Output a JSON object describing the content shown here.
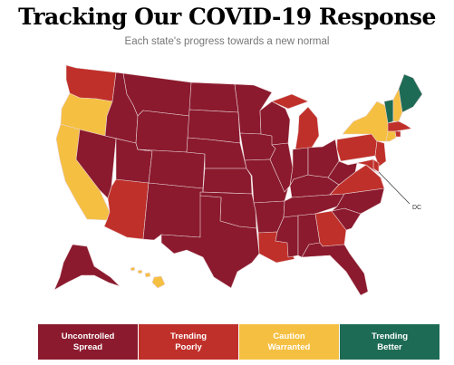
{
  "title": "Tracking Our COVID-19 Response",
  "subtitle": "Each state's progress towards a new normal",
  "dc_label": "DC",
  "colors": {
    "uncontrolled": "#8b1a2e",
    "poorly": "#c0302a",
    "caution": "#f5c042",
    "better": "#1d6b55"
  },
  "legend": [
    {
      "key": "uncontrolled",
      "label": "Uncontrolled\nSpread"
    },
    {
      "key": "poorly",
      "label": "Trending\nPoorly"
    },
    {
      "key": "caution",
      "label": "Caution\nWarranted"
    },
    {
      "key": "better",
      "label": "Trending\nBetter"
    }
  ],
  "states": {
    "WA": "poorly",
    "OR": "caution",
    "CA": "caution",
    "ID": "uncontrolled",
    "NV": "uncontrolled",
    "AZ": "poorly",
    "UT": "uncontrolled",
    "MT": "uncontrolled",
    "WY": "uncontrolled",
    "CO": "uncontrolled",
    "NM": "uncontrolled",
    "ND": "uncontrolled",
    "SD": "uncontrolled",
    "NE": "uncontrolled",
    "KS": "uncontrolled",
    "OK": "uncontrolled",
    "TX": "uncontrolled",
    "MN": "uncontrolled",
    "IA": "uncontrolled",
    "MO": "uncontrolled",
    "AR": "uncontrolled",
    "LA": "poorly",
    "WI": "uncontrolled",
    "IL": "uncontrolled",
    "MI": "poorly",
    "IN": "uncontrolled",
    "OH": "uncontrolled",
    "KY": "uncontrolled",
    "TN": "uncontrolled",
    "MS": "uncontrolled",
    "AL": "uncontrolled",
    "GA": "poorly",
    "FL": "uncontrolled",
    "SC": "uncontrolled",
    "NC": "uncontrolled",
    "VA": "poorly",
    "WV": "uncontrolled",
    "PA": "poorly",
    "NY": "caution",
    "VT": "better",
    "NH": "caution",
    "ME": "better",
    "MA": "poorly",
    "RI": "poorly",
    "CT": "caution",
    "NJ": "poorly",
    "DE": "poorly",
    "MD": "poorly",
    "AK": "uncontrolled",
    "HI": "caution"
  }
}
